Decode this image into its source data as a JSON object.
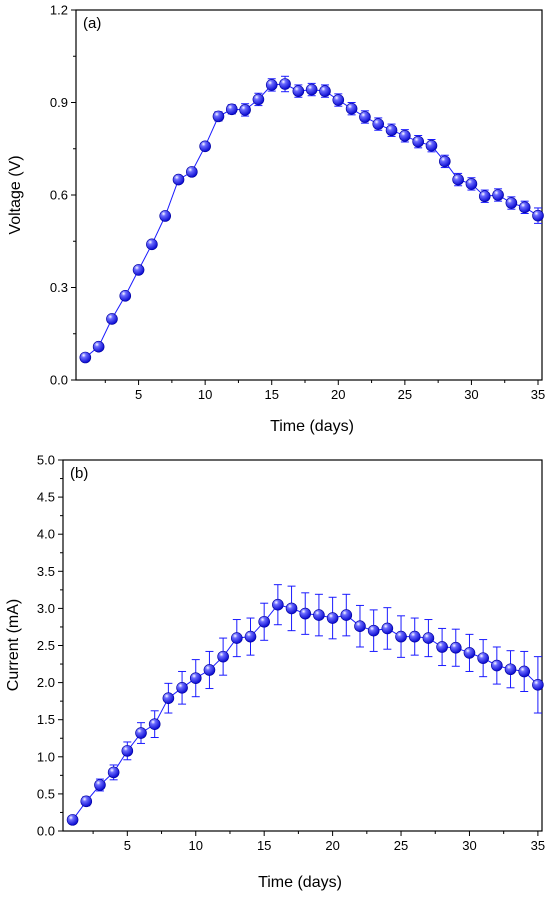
{
  "chart_data": [
    {
      "type": "scatter",
      "panel_label": "(a)",
      "xlabel": "Time (days)",
      "ylabel": "Voltage (V)",
      "xlim": [
        0.3,
        35.3
      ],
      "ylim": [
        0,
        1.2
      ],
      "xticks": [
        5,
        10,
        15,
        20,
        25,
        30,
        35
      ],
      "yticks": [
        "0.0",
        "0.3",
        "0.6",
        "0.9",
        "1.2"
      ],
      "marker_color": "#1a1aff",
      "line_color": "#1a1aff",
      "x": [
        1,
        2,
        3,
        4,
        5,
        6,
        7,
        8,
        9,
        10,
        11,
        12,
        13,
        14,
        15,
        16,
        17,
        18,
        19,
        20,
        21,
        22,
        23,
        24,
        25,
        26,
        27,
        28,
        29,
        30,
        31,
        32,
        33,
        34,
        35
      ],
      "y": [
        0.073,
        0.108,
        0.198,
        0.273,
        0.357,
        0.44,
        0.532,
        0.65,
        0.675,
        0.758,
        0.855,
        0.878,
        0.876,
        0.91,
        0.957,
        0.96,
        0.937,
        0.942,
        0.937,
        0.908,
        0.88,
        0.853,
        0.83,
        0.81,
        0.792,
        0.773,
        0.76,
        0.709,
        0.65,
        0.636,
        0.596,
        0.6,
        0.574,
        0.56,
        0.533
      ],
      "err": [
        0.01,
        0.01,
        0.01,
        0.01,
        0.01,
        0.01,
        0.01,
        0.012,
        0.012,
        0.012,
        0.015,
        0.015,
        0.02,
        0.02,
        0.02,
        0.025,
        0.02,
        0.02,
        0.02,
        0.02,
        0.02,
        0.02,
        0.02,
        0.02,
        0.02,
        0.02,
        0.02,
        0.02,
        0.02,
        0.02,
        0.02,
        0.02,
        0.02,
        0.02,
        0.025
      ]
    },
    {
      "type": "scatter",
      "panel_label": "(b)",
      "xlabel": "Time (days)",
      "ylabel": "Current (mA)",
      "xlim": [
        0.3,
        35.3
      ],
      "ylim": [
        0,
        5.0
      ],
      "xticks": [
        5,
        10,
        15,
        20,
        25,
        30,
        35
      ],
      "yticks": [
        "0.0",
        "0.5",
        "1.0",
        "1.5",
        "2.0",
        "2.5",
        "3.0",
        "3.5",
        "4.0",
        "4.5",
        "5.0"
      ],
      "marker_color": "#1a1aff",
      "line_color": "#1a1aff",
      "x": [
        1,
        2,
        3,
        4,
        5,
        6,
        7,
        8,
        9,
        10,
        11,
        12,
        13,
        14,
        15,
        16,
        17,
        18,
        19,
        20,
        21,
        22,
        23,
        24,
        25,
        26,
        27,
        28,
        29,
        30,
        31,
        32,
        33,
        34,
        35
      ],
      "y": [
        0.15,
        0.4,
        0.62,
        0.79,
        1.08,
        1.32,
        1.44,
        1.79,
        1.93,
        2.06,
        2.17,
        2.35,
        2.6,
        2.62,
        2.82,
        3.05,
        3.0,
        2.93,
        2.91,
        2.87,
        2.91,
        2.76,
        2.7,
        2.73,
        2.62,
        2.62,
        2.6,
        2.48,
        2.47,
        2.4,
        2.33,
        2.23,
        2.18,
        2.15,
        1.97
      ],
      "err": [
        0.05,
        0.06,
        0.08,
        0.1,
        0.12,
        0.14,
        0.18,
        0.2,
        0.22,
        0.25,
        0.25,
        0.25,
        0.25,
        0.25,
        0.25,
        0.27,
        0.3,
        0.28,
        0.28,
        0.28,
        0.28,
        0.28,
        0.28,
        0.28,
        0.28,
        0.25,
        0.25,
        0.25,
        0.25,
        0.25,
        0.25,
        0.25,
        0.25,
        0.27,
        0.38
      ]
    }
  ]
}
